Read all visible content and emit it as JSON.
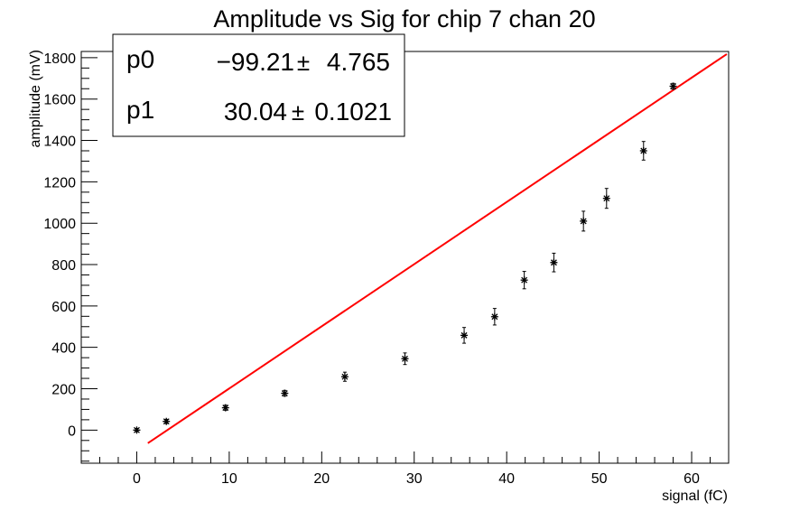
{
  "chart_data": {
    "type": "scatter",
    "title": "Amplitude vs Sig for chip 7 chan 20",
    "xlabel": "signal (fC)",
    "ylabel": "amplitude (mV)",
    "xlim": [
      -6,
      64
    ],
    "ylim": [
      -160,
      1830
    ],
    "x_ticks": [
      0,
      10,
      20,
      30,
      40,
      50,
      60
    ],
    "y_ticks": [
      0,
      200,
      400,
      600,
      800,
      1000,
      1200,
      1400,
      1600,
      1800
    ],
    "grid": false,
    "series": [
      {
        "marker": "star",
        "color": "#000000",
        "points": [
          {
            "x": 0,
            "y": 0,
            "err": 8
          },
          {
            "x": 3.2,
            "y": 42,
            "err": 10
          },
          {
            "x": 9.6,
            "y": 108,
            "err": 12
          },
          {
            "x": 16.0,
            "y": 178,
            "err": 14
          },
          {
            "x": 22.5,
            "y": 258,
            "err": 22
          },
          {
            "x": 29.0,
            "y": 345,
            "err": 28
          },
          {
            "x": 35.4,
            "y": 458,
            "err": 38
          },
          {
            "x": 38.7,
            "y": 548,
            "err": 40
          },
          {
            "x": 41.9,
            "y": 725,
            "err": 42
          },
          {
            "x": 45.1,
            "y": 810,
            "err": 45
          },
          {
            "x": 48.3,
            "y": 1010,
            "err": 48
          },
          {
            "x": 50.8,
            "y": 1120,
            "err": 48
          },
          {
            "x": 54.8,
            "y": 1350,
            "err": 45
          },
          {
            "x": 58.0,
            "y": 1662,
            "err": 14
          }
        ]
      }
    ],
    "fit": {
      "color": "#ff0000",
      "x_range": [
        1.2,
        63.8
      ],
      "p0": -99.21,
      "p1": 30.04
    },
    "stats_box": {
      "position": "top-left",
      "rows": [
        {
          "name": "p0",
          "value": "−99.21",
          "pm": "±",
          "error": "4.765"
        },
        {
          "name": "p1",
          "value": "30.04",
          "pm": "±",
          "error": "0.1021"
        }
      ]
    }
  }
}
